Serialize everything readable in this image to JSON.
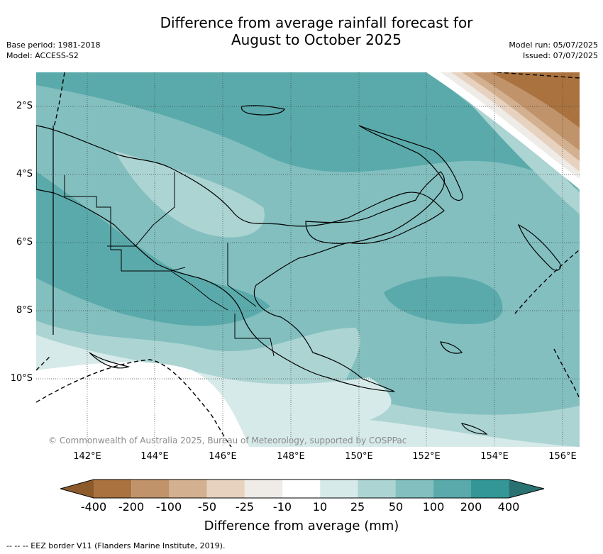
{
  "title_line1": "Difference from average rainfall forecast for",
  "title_line2": "August to October 2025",
  "base_period": "Base period: 1981-2018",
  "model": "Model: ACCESS-S2",
  "model_run": "Model run: 05/07/2025",
  "issued": "Issued: 07/07/2025",
  "copyright": "© Commonwealth of Australia 2025, Bureau of Meteorology, supported by COSPPac",
  "lon_labels": [
    "142°E",
    "144°E",
    "146°E",
    "148°E",
    "150°E",
    "152°E",
    "154°E",
    "156°E"
  ],
  "lat_labels": [
    "2°S",
    "4°S",
    "6°S",
    "8°S",
    "10°S"
  ],
  "colorbar": {
    "title": "Difference from average (mm)",
    "ticks": [
      "-400",
      "-200",
      "-100",
      "-50",
      "-25",
      "-10",
      "10",
      "25",
      "50",
      "100",
      "200",
      "400"
    ],
    "colors": {
      "lt_-400": "#8c5a2b",
      "-400_-200": "#a9723e",
      "-200_-100": "#c0936a",
      "-100_-50": "#d3b08f",
      "-50_-25": "#e6d2bf",
      "-25_-10": "#efebe7",
      "-10_10": "#ffffff",
      "10_25": "#d6eae9",
      "25_50": "#acd4d3",
      "50_100": "#83bfbf",
      "100_200": "#5aaaab",
      "200_400": "#339797",
      "gt_400": "#2a7272"
    }
  },
  "footnote": "--  --  -- EEZ border V11 (Flanders Marine Institute, 2019)."
}
